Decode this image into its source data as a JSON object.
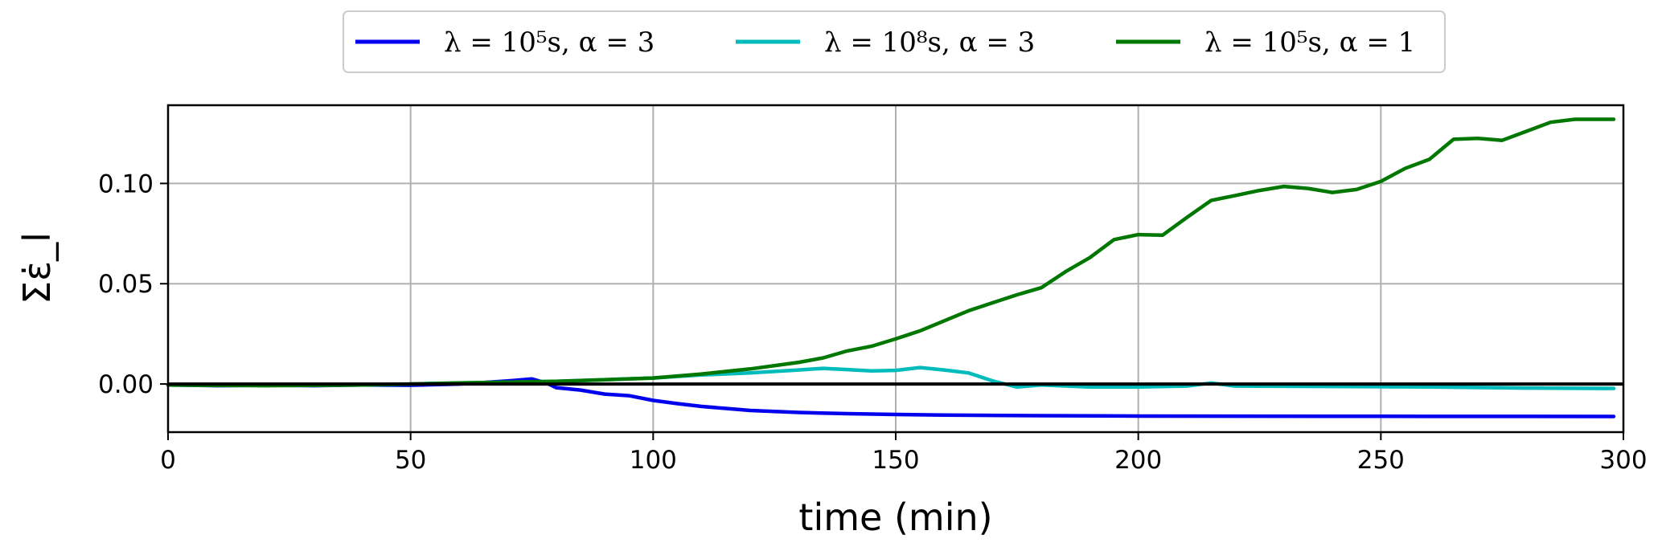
{
  "chart_data": {
    "type": "line",
    "xlabel": "time (min)",
    "ylabel": "Σε̇_l",
    "xlim": [
      0,
      300
    ],
    "ylim": [
      -0.024,
      0.139
    ],
    "xticks": [
      0,
      50,
      100,
      150,
      200,
      250,
      300
    ],
    "xtick_labels": [
      "0",
      "50",
      "100",
      "150",
      "200",
      "250",
      "300"
    ],
    "yticks": [
      0.0,
      0.05,
      0.1
    ],
    "ytick_labels": [
      "0.00",
      "0.05",
      "0.10"
    ],
    "grid": true,
    "legend_position": "top-center",
    "reference_line": {
      "y": 0,
      "color": "#000000"
    },
    "series": [
      {
        "name": "λ = 10⁵s, α = 3",
        "color": "#0000ee",
        "x": [
          0,
          10,
          20,
          30,
          40,
          50,
          60,
          65,
          70,
          75,
          78,
          80,
          85,
          90,
          95,
          100,
          105,
          110,
          115,
          120,
          130,
          140,
          150,
          160,
          180,
          200,
          250,
          298
        ],
        "y": [
          -0.0005,
          -0.0008,
          -0.0006,
          -0.0008,
          -0.0005,
          -0.0006,
          0.0,
          0.0007,
          0.0015,
          0.0025,
          0.0005,
          -0.0018,
          -0.003,
          -0.005,
          -0.0058,
          -0.0082,
          -0.0098,
          -0.0112,
          -0.0122,
          -0.0132,
          -0.0142,
          -0.0148,
          -0.0152,
          -0.0155,
          -0.0158,
          -0.016,
          -0.0161,
          -0.0162
        ]
      },
      {
        "name": "λ = 10⁸s, α = 3",
        "color": "#00bbbb",
        "x": [
          0,
          20,
          40,
          60,
          80,
          100,
          110,
          120,
          130,
          135,
          140,
          145,
          150,
          155,
          160,
          165,
          170,
          175,
          180,
          190,
          200,
          210,
          215,
          220,
          240,
          260,
          280,
          298
        ],
        "y": [
          -0.0005,
          -0.0007,
          -0.0005,
          0.0005,
          0.0013,
          0.003,
          0.0045,
          0.0055,
          0.007,
          0.0078,
          0.0072,
          0.0065,
          0.0068,
          0.0082,
          0.007,
          0.0055,
          0.0015,
          -0.0015,
          -0.0005,
          -0.0015,
          -0.0015,
          -0.001,
          0.0005,
          -0.001,
          -0.0012,
          -0.0015,
          -0.002,
          -0.0022
        ]
      },
      {
        "name": "λ = 10⁵s, α = 1",
        "color": "#007700",
        "x": [
          0,
          20,
          40,
          60,
          80,
          100,
          110,
          120,
          130,
          135,
          140,
          145,
          150,
          155,
          160,
          165,
          170,
          175,
          180,
          185,
          190,
          195,
          200,
          205,
          210,
          215,
          220,
          225,
          230,
          235,
          240,
          245,
          250,
          255,
          260,
          265,
          270,
          275,
          280,
          285,
          290,
          298
        ],
        "y": [
          -0.0005,
          -0.0008,
          -0.0005,
          0.0005,
          0.0013,
          0.003,
          0.005,
          0.0075,
          0.0108,
          0.013,
          0.0165,
          0.0188,
          0.0225,
          0.0265,
          0.0315,
          0.0365,
          0.0405,
          0.0445,
          0.048,
          0.056,
          0.063,
          0.072,
          0.0745,
          0.0742,
          0.083,
          0.0915,
          0.094,
          0.0965,
          0.0985,
          0.0975,
          0.0955,
          0.097,
          0.101,
          0.1075,
          0.112,
          0.122,
          0.1225,
          0.1215,
          0.126,
          0.1305,
          0.132,
          0.132
        ]
      }
    ]
  }
}
